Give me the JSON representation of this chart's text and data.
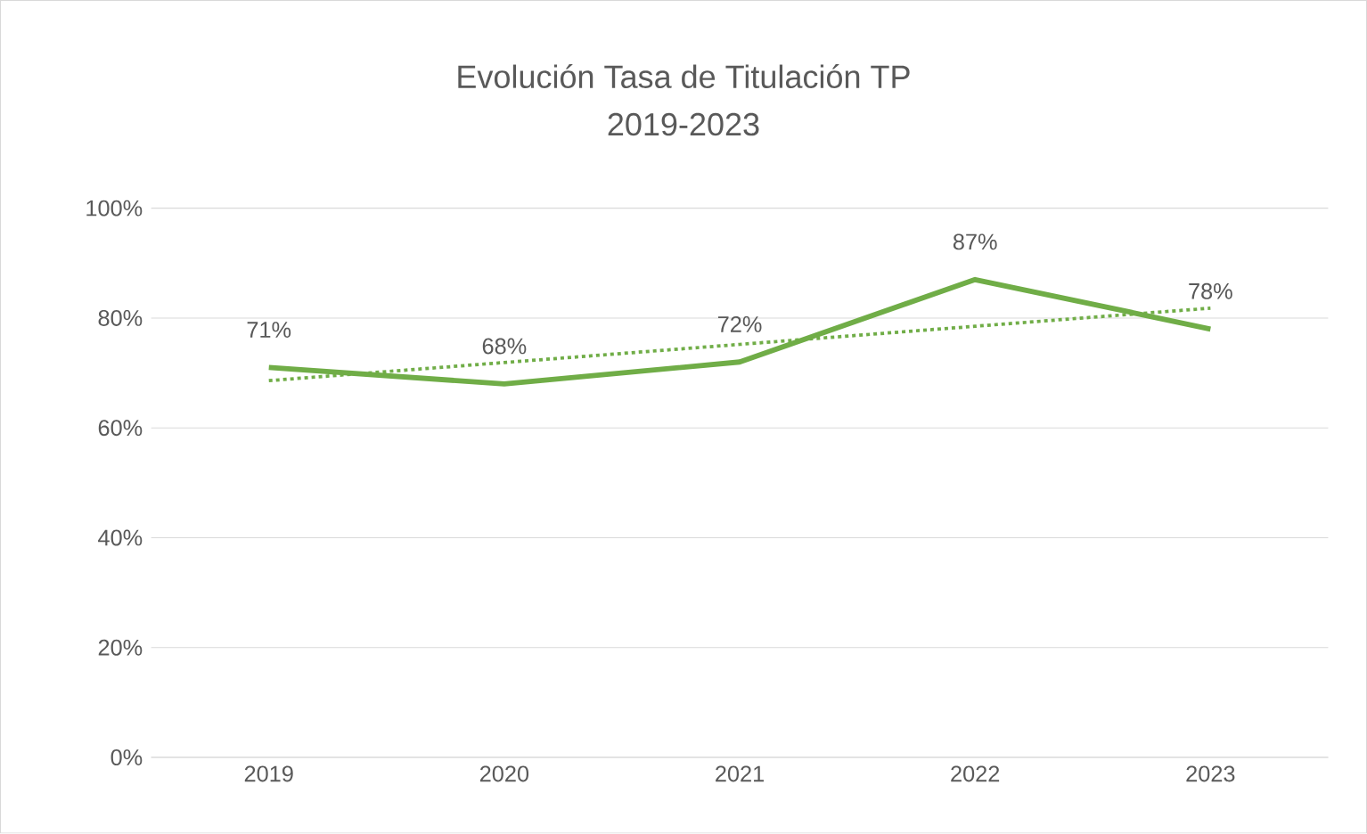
{
  "chart_data": {
    "type": "line",
    "title": "Evolución Tasa de Titulación TP",
    "subtitle": "2019-2023",
    "categories": [
      "2019",
      "2020",
      "2021",
      "2022",
      "2023"
    ],
    "series": [
      {
        "color": "#70ad47",
        "values": [
          71,
          68,
          72,
          87,
          78
        ],
        "value_labels": [
          "71%",
          "68%",
          "72%",
          "87%",
          "78%"
        ],
        "line_style": "solid"
      },
      {
        "color": "#70ad47",
        "values": [
          68.6,
          71.9,
          75.2,
          78.5,
          81.8
        ],
        "line_style": "dotted"
      }
    ],
    "ylim": [
      0,
      100
    ],
    "yticks": [
      {
        "value": 0,
        "label": "0%"
      },
      {
        "value": 20,
        "label": "20%"
      },
      {
        "value": 40,
        "label": "40%"
      },
      {
        "value": 60,
        "label": "60%"
      },
      {
        "value": 80,
        "label": "80%"
      },
      {
        "value": 100,
        "label": "100%"
      }
    ],
    "grid": "y",
    "marker": "none"
  }
}
